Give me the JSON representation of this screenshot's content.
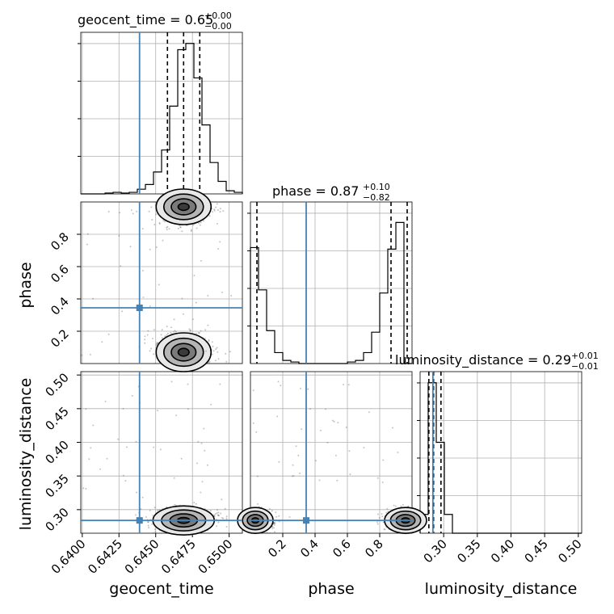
{
  "chart_data": {
    "type": "corner",
    "parameters": [
      "geocent_time",
      "phase",
      "luminosity_distance"
    ],
    "titles": [
      {
        "param": "geocent_time",
        "text": "geocent_time = 0.65",
        "plus": "+0.00",
        "minus": "−0.00"
      },
      {
        "param": "phase",
        "text": "phase = 0.87",
        "plus": "+0.10",
        "minus": "−0.82"
      },
      {
        "param": "luminosity_distance",
        "text": "luminosity_distance = 0.29",
        "plus": "+0.01",
        "minus": "−0.01"
      }
    ],
    "ranges": {
      "geocent_time": [
        0.6399,
        0.6509
      ],
      "phase": [
        0.0,
        1.0
      ],
      "luminosity_distance": [
        0.265,
        0.505
      ]
    },
    "ticks": {
      "geocent_time": [
        "0.6400",
        "0.6425",
        "0.6450",
        "0.6475",
        "0.6500"
      ],
      "phase_x": [
        "0.2",
        "0.4",
        "0.6",
        "0.8"
      ],
      "phase_y": [
        "0.2",
        "0.4",
        "0.6",
        "0.8"
      ],
      "luminosity_distance_x": [
        "0.30",
        "0.35",
        "0.40",
        "0.45",
        "0.50"
      ],
      "luminosity_distance_y": [
        "0.30",
        "0.35",
        "0.40",
        "0.45",
        "0.50"
      ]
    },
    "truths": {
      "geocent_time": 0.6439,
      "phase": 0.345,
      "luminosity_distance": 0.284
    },
    "quantiles": {
      "geocent_time": [
        0.6458,
        0.6469,
        0.648
      ],
      "phase": [
        0.04,
        0.87,
        0.97
      ],
      "luminosity_distance": [
        0.278,
        0.285,
        0.296
      ]
    },
    "histograms": {
      "geocent_time": {
        "edges": [
          0.6399,
          0.64045,
          0.641,
          0.64155,
          0.6421,
          0.64265,
          0.6432,
          0.64375,
          0.6443,
          0.64485,
          0.6454,
          0.64595,
          0.6465,
          0.64705,
          0.6476,
          0.64815,
          0.6487,
          0.64925,
          0.6498,
          0.65035,
          0.6509
        ],
        "counts": [
          0,
          0,
          0,
          0.005,
          0.01,
          0.005,
          0.01,
          0.03,
          0.06,
          0.14,
          0.28,
          0.56,
          0.92,
          0.96,
          0.74,
          0.44,
          0.2,
          0.08,
          0.02,
          0.01
        ]
      },
      "phase": {
        "edges": [
          0.0,
          0.05,
          0.1,
          0.15,
          0.2,
          0.25,
          0.3,
          0.35,
          0.4,
          0.45,
          0.5,
          0.55,
          0.6,
          0.65,
          0.7,
          0.75,
          0.8,
          0.85,
          0.9,
          0.95,
          1.0
        ],
        "counts": [
          0.74,
          0.47,
          0.21,
          0.07,
          0.02,
          0.01,
          0.0,
          0.0,
          0.0,
          0.0,
          0.0,
          0.0,
          0.01,
          0.02,
          0.07,
          0.2,
          0.45,
          0.73,
          0.9,
          0.0
        ]
      },
      "luminosity_distance": {
        "edges": [
          0.265,
          0.277,
          0.289,
          0.301,
          0.313,
          0.325,
          0.337,
          0.349,
          0.361,
          0.373,
          0.385,
          0.397,
          0.409,
          0.421,
          0.433,
          0.445,
          0.457,
          0.469,
          0.481,
          0.493,
          0.505
        ],
        "counts": [
          0.12,
          0.96,
          0.58,
          0.12,
          0.0,
          0.0,
          0.0,
          0.0,
          0.0,
          0.0,
          0.0,
          0.0,
          0.0,
          0.0,
          0.0,
          0.0,
          0.0,
          0.0,
          0.0,
          0.0
        ]
      }
    },
    "grid": true
  }
}
